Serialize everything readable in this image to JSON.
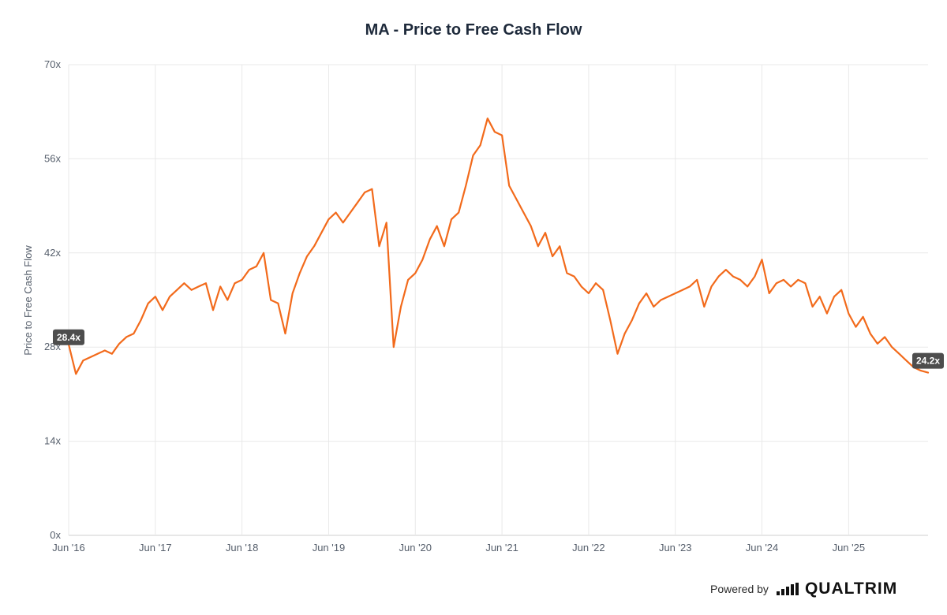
{
  "chart_data": {
    "type": "line",
    "title": "MA - Price to Free Cash Flow",
    "ylabel": "Price to Free Cash Flow",
    "xlabel": "",
    "ylim": [
      0,
      70
    ],
    "y_ticks": [
      "0x",
      "14x",
      "28x",
      "42x",
      "56x",
      "70x"
    ],
    "y_tick_values": [
      0,
      14,
      28,
      42,
      56,
      70
    ],
    "x_ticks": [
      "Jun '16",
      "Jun '17",
      "Jun '18",
      "Jun '19",
      "Jun '20",
      "Jun '21",
      "Jun '22",
      "Jun '23",
      "Jun '24",
      "Jun '25"
    ],
    "x_tick_dates": [
      "2016-06",
      "2017-06",
      "2018-06",
      "2019-06",
      "2020-06",
      "2021-06",
      "2022-06",
      "2023-06",
      "2024-06",
      "2025-06"
    ],
    "x_range": [
      "2016-06",
      "2026-05"
    ],
    "grid": true,
    "legend": "none",
    "line_color": "#f26a1b",
    "start_label": "28.4x",
    "end_label": "24.2x",
    "series": [
      {
        "values": [
          [
            "2016-06",
            28.4
          ],
          [
            "2016-07",
            24.0
          ],
          [
            "2016-08",
            26.0
          ],
          [
            "2016-09",
            26.5
          ],
          [
            "2016-10",
            27.0
          ],
          [
            "2016-11",
            27.5
          ],
          [
            "2016-12",
            27.0
          ],
          [
            "2017-01",
            28.5
          ],
          [
            "2017-02",
            29.5
          ],
          [
            "2017-03",
            30.0
          ],
          [
            "2017-04",
            32.0
          ],
          [
            "2017-05",
            34.5
          ],
          [
            "2017-06",
            35.5
          ],
          [
            "2017-07",
            33.5
          ],
          [
            "2017-08",
            35.5
          ],
          [
            "2017-09",
            36.5
          ],
          [
            "2017-10",
            37.5
          ],
          [
            "2017-11",
            36.5
          ],
          [
            "2017-12",
            37.0
          ],
          [
            "2018-01",
            37.5
          ],
          [
            "2018-02",
            33.5
          ],
          [
            "2018-03",
            37.0
          ],
          [
            "2018-04",
            35.0
          ],
          [
            "2018-05",
            37.5
          ],
          [
            "2018-06",
            38.0
          ],
          [
            "2018-07",
            39.5
          ],
          [
            "2018-08",
            40.0
          ],
          [
            "2018-09",
            42.0
          ],
          [
            "2018-10",
            35.0
          ],
          [
            "2018-11",
            34.5
          ],
          [
            "2018-12",
            30.0
          ],
          [
            "2019-01",
            36.0
          ],
          [
            "2019-02",
            39.0
          ],
          [
            "2019-03",
            41.5
          ],
          [
            "2019-04",
            43.0
          ],
          [
            "2019-05",
            45.0
          ],
          [
            "2019-06",
            47.0
          ],
          [
            "2019-07",
            48.0
          ],
          [
            "2019-08",
            46.5
          ],
          [
            "2019-09",
            48.0
          ],
          [
            "2019-10",
            49.5
          ],
          [
            "2019-11",
            51.0
          ],
          [
            "2019-12",
            51.5
          ],
          [
            "2020-01",
            43.0
          ],
          [
            "2020-02",
            46.5
          ],
          [
            "2020-03",
            28.0
          ],
          [
            "2020-04",
            34.0
          ],
          [
            "2020-05",
            38.0
          ],
          [
            "2020-06",
            39.0
          ],
          [
            "2020-07",
            41.0
          ],
          [
            "2020-08",
            44.0
          ],
          [
            "2020-09",
            46.0
          ],
          [
            "2020-10",
            43.0
          ],
          [
            "2020-11",
            47.0
          ],
          [
            "2020-12",
            48.0
          ],
          [
            "2021-01",
            52.0
          ],
          [
            "2021-02",
            56.5
          ],
          [
            "2021-03",
            58.0
          ],
          [
            "2021-04",
            62.0
          ],
          [
            "2021-05",
            60.0
          ],
          [
            "2021-06",
            59.5
          ],
          [
            "2021-07",
            52.0
          ],
          [
            "2021-08",
            50.0
          ],
          [
            "2021-09",
            48.0
          ],
          [
            "2021-10",
            46.0
          ],
          [
            "2021-11",
            43.0
          ],
          [
            "2021-12",
            45.0
          ],
          [
            "2022-01",
            41.5
          ],
          [
            "2022-02",
            43.0
          ],
          [
            "2022-03",
            39.0
          ],
          [
            "2022-04",
            38.5
          ],
          [
            "2022-05",
            37.0
          ],
          [
            "2022-06",
            36.0
          ],
          [
            "2022-07",
            37.5
          ],
          [
            "2022-08",
            36.5
          ],
          [
            "2022-09",
            32.0
          ],
          [
            "2022-10",
            27.0
          ],
          [
            "2022-11",
            30.0
          ],
          [
            "2022-12",
            32.0
          ],
          [
            "2023-01",
            34.5
          ],
          [
            "2023-02",
            36.0
          ],
          [
            "2023-03",
            34.0
          ],
          [
            "2023-04",
            35.0
          ],
          [
            "2023-05",
            35.5
          ],
          [
            "2023-06",
            36.0
          ],
          [
            "2023-07",
            36.5
          ],
          [
            "2023-08",
            37.0
          ],
          [
            "2023-09",
            38.0
          ],
          [
            "2023-10",
            34.0
          ],
          [
            "2023-11",
            37.0
          ],
          [
            "2023-12",
            38.5
          ],
          [
            "2024-01",
            39.5
          ],
          [
            "2024-02",
            38.5
          ],
          [
            "2024-03",
            38.0
          ],
          [
            "2024-04",
            37.0
          ],
          [
            "2024-05",
            38.5
          ],
          [
            "2024-06",
            41.0
          ],
          [
            "2024-07",
            36.0
          ],
          [
            "2024-08",
            37.5
          ],
          [
            "2024-09",
            38.0
          ],
          [
            "2024-10",
            37.0
          ],
          [
            "2024-11",
            38.0
          ],
          [
            "2024-12",
            37.5
          ],
          [
            "2025-01",
            34.0
          ],
          [
            "2025-02",
            35.5
          ],
          [
            "2025-03",
            33.0
          ],
          [
            "2025-04",
            35.5
          ],
          [
            "2025-05",
            36.5
          ],
          [
            "2025-06",
            33.0
          ],
          [
            "2025-07",
            31.0
          ],
          [
            "2025-08",
            32.5
          ],
          [
            "2025-09",
            30.0
          ],
          [
            "2025-10",
            28.5
          ],
          [
            "2025-11",
            29.5
          ],
          [
            "2025-12",
            28.0
          ],
          [
            "2026-01",
            27.0
          ],
          [
            "2026-02",
            26.0
          ],
          [
            "2026-03",
            25.0
          ],
          [
            "2026-04",
            24.5
          ],
          [
            "2026-05",
            24.2
          ]
        ]
      }
    ]
  },
  "footer": {
    "powered_by": "Powered by",
    "brand": "QUALTRIM"
  },
  "brand_icon": "bar-signal-icon"
}
